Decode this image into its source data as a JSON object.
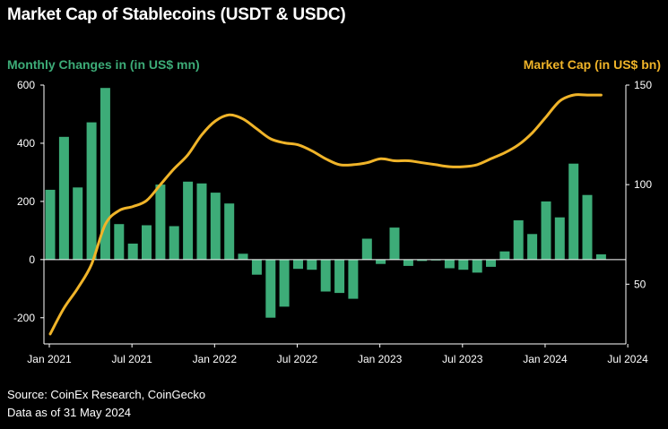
{
  "title": "Market Cap of Stablecoins (USDT & USDC)",
  "left_axis_title": "Monthly Changes in (in US$ mn)",
  "right_axis_title": "Market Cap (in US$ bn)",
  "source": "Source: CoinEx Research, CoinGecko",
  "as_of": "Data as of 31 May 2024",
  "colors": {
    "bars": "#3dac78",
    "line": "#f0b429",
    "background": "#000000",
    "text": "#ffffff"
  },
  "chart_data": {
    "type": "bar",
    "x_tick_labels": [
      "Jan 2021",
      "Jul 2021",
      "Jan 2022",
      "Jul 2022",
      "Jan 2023",
      "Jul 2023",
      "Jan 2024",
      "Jul 2024"
    ],
    "y_left": {
      "ticks": [
        -200,
        0,
        200,
        400,
        600
      ],
      "range": [
        -290,
        600
      ]
    },
    "y_right": {
      "ticks": [
        50,
        100,
        150
      ],
      "range": [
        20,
        150
      ]
    },
    "grid": "horizontal zero line only",
    "series": [
      {
        "axis": "left",
        "type": "bar",
        "months_from_start": [
          0,
          1,
          2,
          3,
          4,
          5,
          6,
          7,
          8,
          9,
          10,
          11,
          12,
          13,
          14,
          15,
          16,
          17,
          18,
          19,
          20,
          21,
          22,
          23,
          24,
          25,
          26,
          27,
          28,
          29,
          30,
          31,
          32,
          33,
          34,
          35,
          36,
          37,
          38,
          39,
          40
        ],
        "values": [
          240,
          422,
          248,
          472,
          590,
          122,
          55,
          118,
          258,
          115,
          268,
          262,
          230,
          193,
          20,
          -52,
          -200,
          -162,
          -32,
          -35,
          -110,
          -115,
          -135,
          72,
          -15,
          110,
          -22,
          -5,
          0,
          -30,
          -35,
          -45,
          -25,
          28,
          135,
          88,
          200,
          145,
          330,
          222,
          18
        ]
      },
      {
        "axis": "right",
        "type": "line",
        "months_from_start": [
          0,
          1,
          2,
          3,
          4,
          5,
          6,
          7,
          8,
          9,
          10,
          11,
          12,
          13,
          14,
          15,
          16,
          17,
          18,
          19,
          20,
          21,
          22,
          23,
          24,
          25,
          26,
          27,
          28,
          29,
          30,
          31,
          32,
          33,
          34,
          35,
          36,
          37,
          38,
          39,
          40
        ],
        "values": [
          25,
          38,
          48,
          60,
          80,
          87,
          89,
          92,
          100,
          108,
          115,
          125,
          132,
          135,
          133,
          128,
          123,
          121,
          120,
          117,
          113,
          110,
          110,
          111,
          113,
          112,
          112,
          111,
          110,
          109,
          109,
          110,
          113,
          116,
          120,
          126,
          134,
          142,
          145,
          145,
          145
        ]
      }
    ]
  }
}
